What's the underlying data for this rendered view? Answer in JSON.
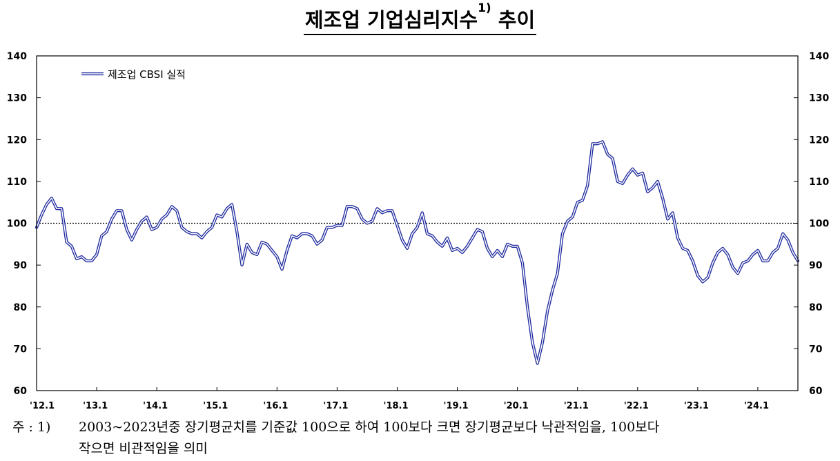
{
  "title": {
    "text": "제조업 기업심리지수",
    "sup": "1)",
    "tail": "추이"
  },
  "footnote": {
    "lead": "주 : 1)",
    "line1": "2003~2023년중 장기평균치를 기준값 100으로 하여 100보다 크면 장기평균보다 낙관적임을, 100보다",
    "line2": "작으면 비관적임을 의미"
  },
  "colors": {
    "series": "#1f2a9e",
    "axis": "#000000"
  },
  "chart_data": {
    "type": "line",
    "title": "제조업 기업심리지수 추이",
    "ylim": [
      60,
      140
    ],
    "yticks": [
      60,
      70,
      80,
      90,
      100,
      110,
      120,
      130,
      140
    ],
    "xtick_labels": [
      "'12.1",
      "'13.1",
      "'14.1",
      "'15.1",
      "'16.1",
      "'17.1",
      "'18.1",
      "'19.1",
      "'20.1",
      "'21.1",
      "'22.1",
      "'23.1",
      "'24.1"
    ],
    "xtick_dates": [
      "2012-01",
      "2013-01",
      "2014-01",
      "2015-01",
      "2016-01",
      "2017-01",
      "2018-01",
      "2019-01",
      "2020-01",
      "2021-01",
      "2022-01",
      "2023-01",
      "2024-01"
    ],
    "reference_line": 100,
    "axes": "left and right y axes",
    "legend_position": "top-left",
    "series": [
      {
        "name": "제조업 CBSI 실적",
        "start": "2012-01",
        "frequency": "monthly",
        "values": [
          99,
          102,
          104.5,
          106,
          103.5,
          103.5,
          95.5,
          94.5,
          91.5,
          92,
          91,
          91,
          92.5,
          97,
          98,
          101,
          103,
          103,
          98.5,
          96,
          98.5,
          100.5,
          101.5,
          98.5,
          99,
          101,
          102,
          104,
          103,
          99,
          98,
          97.5,
          97.5,
          96.5,
          98,
          99,
          102,
          101.5,
          103.5,
          104.5,
          98,
          90,
          95,
          93,
          92.5,
          95.5,
          95,
          93.5,
          92,
          89,
          93.5,
          97,
          96.5,
          97.5,
          97.5,
          97,
          95,
          96,
          99,
          99,
          99.5,
          99.5,
          104,
          104,
          103.5,
          101,
          100,
          100.5,
          103.5,
          102.5,
          103,
          103,
          99.5,
          96,
          94,
          97.5,
          99,
          102.5,
          97.5,
          97,
          95.5,
          94.5,
          96.5,
          93.5,
          94,
          93,
          94.5,
          96.5,
          98.5,
          98,
          94,
          92,
          93.5,
          92,
          95,
          94.5,
          94.5,
          90.5,
          80,
          71.5,
          66.5,
          71.5,
          79,
          84,
          88,
          97.5,
          100.5,
          101.5,
          105,
          105.5,
          109,
          119,
          119,
          119.5,
          116.5,
          115.5,
          110,
          109.5,
          111.5,
          113,
          111.5,
          112,
          107.5,
          108.5,
          110,
          106,
          101,
          102.5,
          96.5,
          94,
          93.5,
          91,
          87.5,
          86,
          87,
          90.5,
          93,
          94,
          92.5,
          89.5,
          88,
          90.5,
          91,
          92.5,
          93.5,
          91,
          91,
          93,
          94,
          97.5,
          96,
          93,
          91
        ]
      }
    ]
  }
}
